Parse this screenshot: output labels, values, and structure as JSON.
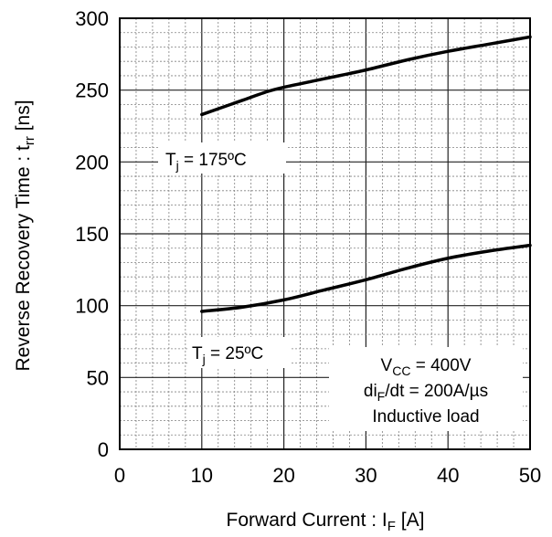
{
  "chart_data": {
    "type": "line",
    "xlabel": {
      "main": "Forward Current : I",
      "sub": "F",
      "unit": " [A]"
    },
    "ylabel": {
      "main": "Reverse Recovery Time : t",
      "sub": "rr",
      "unit": " [ns]"
    },
    "xlim": [
      0,
      50
    ],
    "ylim": [
      0,
      300
    ],
    "x_major_ticks": [
      0,
      10,
      20,
      30,
      40,
      50
    ],
    "y_major_ticks": [
      0,
      50,
      100,
      150,
      200,
      250,
      300
    ],
    "x_minor_step": 2,
    "y_minor_step": 10,
    "grid": true,
    "series": [
      {
        "label": {
          "pre": "T",
          "sub": "j",
          "post": " = 175ºC"
        },
        "x": [
          10,
          12,
          15,
          18,
          20,
          25,
          30,
          35,
          40,
          45,
          50
        ],
        "y": [
          233,
          237,
          243,
          249,
          252,
          258,
          264,
          271,
          277,
          282,
          287
        ]
      },
      {
        "label": {
          "pre": "T",
          "sub": "j",
          "post": " = 25ºC"
        },
        "x": [
          10,
          15,
          20,
          25,
          30,
          35,
          40,
          45,
          50
        ],
        "y": [
          96,
          99,
          104,
          111,
          118,
          126,
          133,
          138,
          142
        ]
      }
    ],
    "conditions": {
      "vcc": {
        "pre": "V",
        "sub": "CC",
        "post": " = 400V"
      },
      "didt": {
        "pre": "di",
        "sub": "F",
        "post": "/dt = 200A/µs"
      },
      "load": "Inductive load"
    },
    "colors": {
      "line": "#000000",
      "grid": "#808080",
      "background": "#ffffff"
    }
  }
}
